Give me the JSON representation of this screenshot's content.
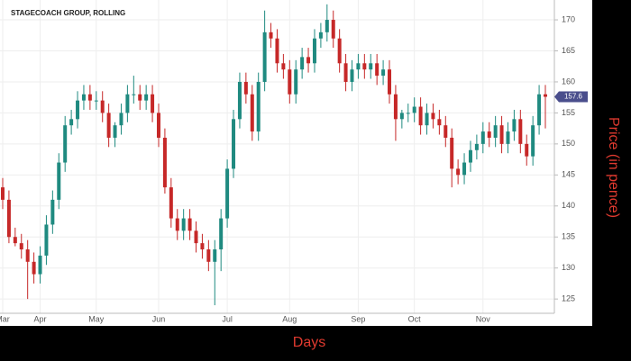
{
  "chart_data": {
    "type": "candlestick",
    "title": "STAGECOACH GROUP, ROLLING",
    "x_label": "Days",
    "y_label": "Price (in pence)",
    "categories": [
      "Mar",
      null,
      null,
      null,
      null,
      null,
      "Apr",
      null,
      null,
      null,
      null,
      null,
      null,
      null,
      null,
      "May",
      null,
      null,
      null,
      null,
      null,
      null,
      null,
      null,
      null,
      "Jun",
      null,
      null,
      null,
      null,
      null,
      null,
      null,
      null,
      null,
      null,
      "Jul",
      null,
      null,
      null,
      null,
      null,
      null,
      null,
      null,
      null,
      "Aug",
      null,
      null,
      null,
      null,
      null,
      null,
      null,
      null,
      null,
      null,
      "Sep",
      null,
      null,
      null,
      null,
      null,
      null,
      null,
      null,
      "Oct",
      null,
      null,
      null,
      null,
      null,
      null,
      null,
      null,
      null,
      null,
      "Nov",
      null,
      null,
      null,
      null,
      null,
      null,
      null,
      null,
      null,
      null
    ],
    "open": [
      143,
      141,
      135,
      134,
      133,
      131,
      129,
      132,
      137,
      141,
      147,
      153,
      154,
      157,
      158,
      157,
      157,
      155,
      151,
      153,
      155,
      158,
      158,
      157,
      158,
      155,
      151,
      143,
      138,
      136,
      138,
      136,
      134,
      133,
      131,
      133,
      138,
      146,
      154,
      160,
      158,
      152,
      160,
      168,
      167,
      163,
      162,
      158,
      162,
      164,
      163,
      167,
      168,
      170,
      167,
      163,
      160,
      162,
      163,
      162,
      163,
      161,
      162,
      158,
      154,
      155,
      155,
      156,
      153,
      155,
      154,
      153,
      151,
      146,
      145,
      147,
      149,
      150,
      152,
      151,
      153,
      150,
      152,
      154,
      150,
      148,
      153,
      158
    ],
    "high": [
      144.5,
      142.5,
      136.5,
      135.5,
      134.5,
      132.5,
      133.5,
      138.5,
      142.5,
      148.5,
      154.5,
      155.5,
      158.5,
      159.5,
      159.5,
      158.5,
      158.5,
      156.5,
      153.5,
      156.5,
      159.5,
      161,
      159.5,
      159.5,
      159.5,
      156.5,
      152.5,
      144.5,
      139.5,
      139.5,
      139.5,
      137.5,
      135.5,
      134.5,
      134.5,
      139.5,
      147.5,
      155.5,
      161.5,
      161.5,
      159.5,
      161.5,
      171.5,
      169.5,
      168.5,
      164.5,
      163.5,
      163.5,
      165.5,
      165.5,
      168.5,
      169.5,
      172.5,
      171.5,
      168.5,
      164.5,
      163.5,
      164.5,
      164.5,
      164.5,
      164.5,
      163.5,
      163.5,
      159.5,
      155.5,
      156.5,
      157.5,
      157.5,
      156.5,
      156.5,
      155.5,
      154.5,
      152.5,
      147.5,
      148.5,
      150.5,
      151.5,
      153.5,
      153.5,
      154.5,
      154.5,
      153.5,
      155.5,
      155.5,
      151.5,
      154.5,
      159.5,
      159.5
    ],
    "low": [
      139.5,
      134,
      133.5,
      131.5,
      125,
      127.5,
      127.5,
      130.5,
      135.5,
      139.5,
      145.5,
      151.5,
      152.5,
      155.5,
      155.5,
      155.5,
      153.5,
      149.5,
      149.5,
      151.5,
      153.5,
      156.5,
      155.5,
      155.5,
      153.5,
      149.5,
      142,
      136.5,
      134.5,
      134.5,
      134.5,
      132.5,
      131.5,
      129.5,
      124,
      129.5,
      136.5,
      144.5,
      152.5,
      156.5,
      150.5,
      150.5,
      158.5,
      165.5,
      161.5,
      160.5,
      156.5,
      156.5,
      160.5,
      161.5,
      161.5,
      165.5,
      166.5,
      165.5,
      161.5,
      158.5,
      158.5,
      160.5,
      160.5,
      160.5,
      159.5,
      159.5,
      156.5,
      150.5,
      152.5,
      153.5,
      153.5,
      151.5,
      151.5,
      152.5,
      151.5,
      149.5,
      143,
      143.5,
      143.5,
      145.5,
      147.5,
      148.5,
      149.5,
      149.5,
      148.5,
      148.5,
      150.5,
      148.5,
      146.5,
      146.5,
      151.5,
      152.5
    ],
    "close": [
      141,
      135,
      134,
      133,
      131,
      129,
      132,
      137,
      141,
      147,
      153,
      154,
      157,
      158,
      157,
      157,
      155,
      151,
      153,
      155,
      158,
      158,
      157,
      158,
      155,
      151,
      143,
      138,
      136,
      138,
      136,
      134,
      133,
      131,
      133,
      138,
      146,
      154,
      160,
      158,
      152,
      160,
      168,
      167,
      163,
      162,
      158,
      162,
      164,
      163,
      167,
      168,
      170,
      167,
      163,
      160,
      162,
      163,
      162,
      163,
      161,
      162,
      158,
      154,
      155,
      155,
      156,
      153,
      155,
      154,
      153,
      151,
      146,
      145,
      147,
      149,
      150,
      152,
      151,
      153,
      150,
      152,
      154,
      150,
      148,
      153,
      158,
      157.6
    ],
    "up_color": "#1f8a80",
    "down_color": "#c62828",
    "ylim": [
      122.7,
      173.2
    ],
    "yticks": [
      125,
      130,
      135,
      140,
      145,
      150,
      155,
      160,
      165,
      170
    ],
    "grid": true
  }
}
